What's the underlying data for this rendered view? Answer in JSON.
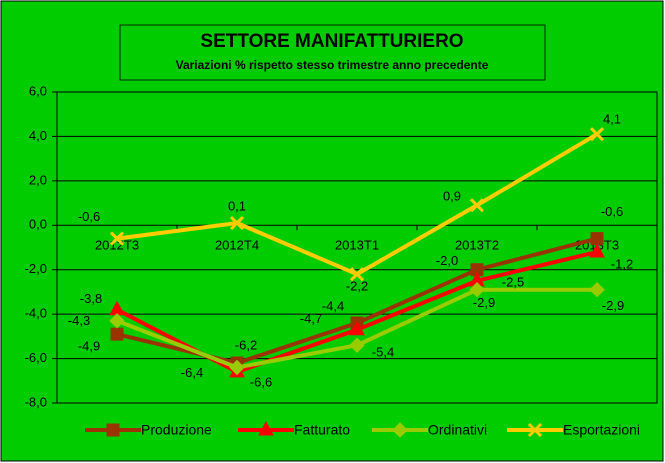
{
  "chart_data": {
    "type": "line",
    "title": "SETTORE MANIFATTURIERO",
    "subtitle": "Variazioni % rispetto stesso trimestre anno precedente",
    "categories": [
      "2012T3",
      "2012T4",
      "2013T1",
      "2013T2",
      "2013T3"
    ],
    "series": [
      {
        "name": "Produzione",
        "color": "#993300",
        "marker": "square",
        "values": [
          -4.9,
          -6.2,
          -4.4,
          -2.0,
          -0.6
        ],
        "value_labels": [
          "-4,9",
          "-6,2",
          "-4,4",
          "-2,0",
          "-0,6"
        ]
      },
      {
        "name": "Fatturato",
        "color": "#ff0000",
        "marker": "triangle",
        "values": [
          -3.8,
          -6.6,
          -4.7,
          -2.5,
          -1.2
        ],
        "value_labels": [
          "-3,8",
          "-6,6",
          "-4,7",
          "-2,5",
          "-1,2"
        ]
      },
      {
        "name": "Ordinativi",
        "color": "#99cc00",
        "marker": "diamond",
        "values": [
          -4.3,
          -6.4,
          -5.4,
          -2.9,
          -2.9
        ],
        "value_labels": [
          "-4,3",
          "-6,4",
          "-5,4",
          "-2,9",
          "-2,9"
        ]
      },
      {
        "name": "Esportazioni",
        "color": "#ffcc00",
        "marker": "x",
        "values": [
          -0.6,
          0.1,
          -2.2,
          0.9,
          4.1
        ],
        "value_labels": [
          "-0,6",
          "0,1",
          "-2,2",
          "0,9",
          "4,1"
        ]
      }
    ],
    "ylim": [
      -8,
      6
    ],
    "yticks": [
      {
        "value": -8,
        "label": "-8,0"
      },
      {
        "value": -6,
        "label": "-6,0"
      },
      {
        "value": -4,
        "label": "-4,0"
      },
      {
        "value": -2,
        "label": "-2,0"
      },
      {
        "value": 0,
        "label": "0,0"
      },
      {
        "value": 2,
        "label": "2,0"
      },
      {
        "value": 4,
        "label": "4,0"
      },
      {
        "value": 6,
        "label": "6,0"
      }
    ],
    "grid": true,
    "legend": "bottom",
    "background": "#00cc00"
  }
}
